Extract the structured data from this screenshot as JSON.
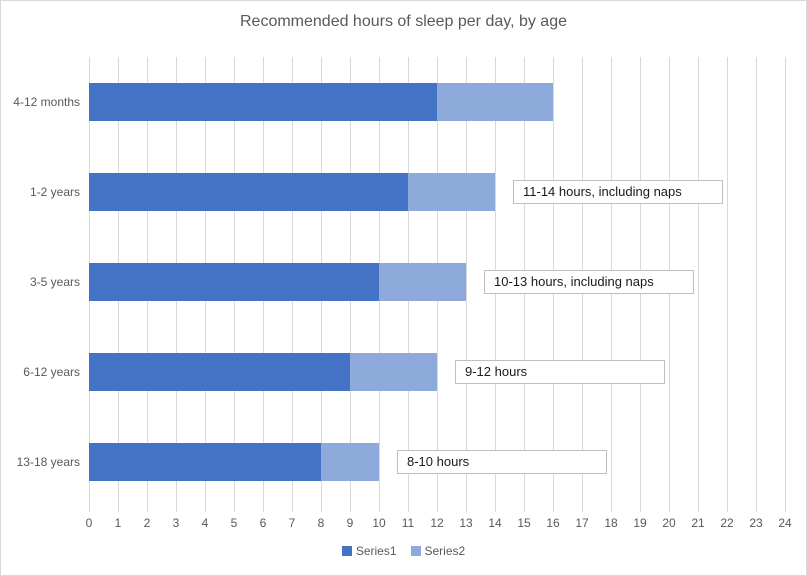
{
  "chart_data": {
    "type": "bar",
    "orientation": "horizontal",
    "stacked": true,
    "title": "Recommended hours of sleep per day, by age",
    "categories": [
      "4-12 months",
      "1-2 years",
      "3-5 years",
      "6-12 years",
      "13-18 years"
    ],
    "series": [
      {
        "name": "Series1",
        "color": "#4472C4",
        "values": [
          12,
          11,
          10,
          9,
          8
        ]
      },
      {
        "name": "Series2",
        "color": "#8EAADB",
        "values": [
          4,
          3,
          3,
          3,
          2
        ]
      }
    ],
    "bar_ranges_hours": [
      [
        12,
        16
      ],
      [
        11,
        14
      ],
      [
        10,
        13
      ],
      [
        9,
        12
      ],
      [
        8,
        10
      ]
    ],
    "annotations": [
      {
        "row": 1,
        "category": "1-2 years",
        "text": "11-14 hours, including naps"
      },
      {
        "row": 2,
        "category": "3-5 years",
        "text": "10-13 hours, including naps"
      },
      {
        "row": 3,
        "category": "6-12 years",
        "text": "9-12 hours"
      },
      {
        "row": 4,
        "category": "13-18 years",
        "text": "8-10 hours"
      }
    ],
    "xlabel": "",
    "ylabel": "",
    "xlim": [
      0,
      24
    ],
    "x_ticks": [
      0,
      1,
      2,
      3,
      4,
      5,
      6,
      7,
      8,
      9,
      10,
      11,
      12,
      13,
      14,
      15,
      16,
      17,
      18,
      19,
      20,
      21,
      22,
      23,
      24
    ],
    "grid": true,
    "legend_position": "bottom",
    "legend": [
      "Series1",
      "Series2"
    ]
  },
  "colors": {
    "series1": "#4472C4",
    "series2": "#8EAADB",
    "gridline": "#D9D9D9",
    "axis_text": "#595959",
    "title_text": "#595959",
    "annotation_border": "#BFBFBF",
    "annotation_text": "#1A1A1A",
    "chart_border": "#D9D9D9",
    "background": "#FFFFFF"
  }
}
